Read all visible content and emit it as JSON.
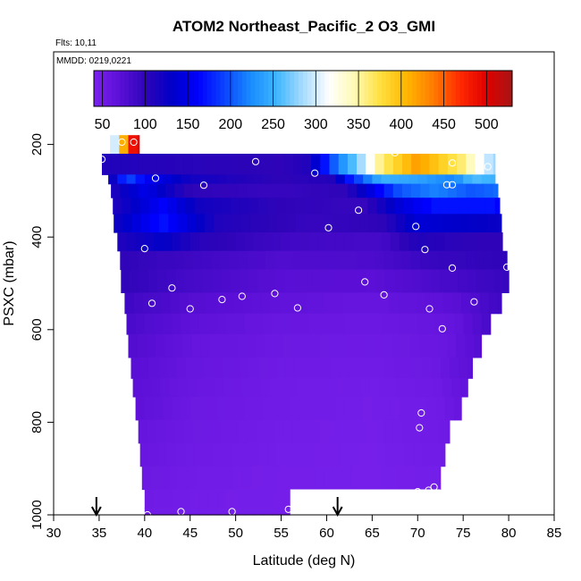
{
  "chart_data": {
    "type": "heatmap",
    "title": "ATOM2 Northeast_Pacific_2 O3_GMI",
    "notes": [
      "Flts: 10,11",
      "MMDD: 0219,0221"
    ],
    "xlabel": "Latitude (deg N)",
    "ylabel": "PSXC (mbar)",
    "xlim": [
      30,
      85
    ],
    "ylim": [
      1000,
      0
    ],
    "x_ticks": [
      30,
      35,
      40,
      45,
      50,
      55,
      60,
      65,
      70,
      75,
      80,
      85
    ],
    "y_ticks": [
      200,
      400,
      600,
      800,
      1000
    ],
    "colorbar": {
      "range": [
        40,
        530
      ],
      "ticks": [
        50,
        100,
        150,
        200,
        250,
        300,
        350,
        400,
        450,
        500
      ],
      "colors": [
        "#7b22ee",
        "#5b0fd6",
        "#2d04b8",
        "#0000c8",
        "#0000ff",
        "#0a44ff",
        "#1a8cff",
        "#3fb6ff",
        "#a8dcff",
        "#ffffff",
        "#fff9b0",
        "#ffdf3a",
        "#ffb400",
        "#ff7a00",
        "#ff2a00",
        "#e00000",
        "#a81414"
      ],
      "position": "top"
    },
    "grid": false,
    "bands": [
      {
        "p": [
          180,
          220
        ],
        "lat": [
          36.2,
          39.4
        ],
        "profile": [
          [
            36.2,
            250
          ],
          [
            37.0,
            330
          ],
          [
            37.6,
            400
          ],
          [
            38.3,
            480
          ],
          [
            39.4,
            500
          ]
        ]
      },
      {
        "p": [
          220,
          265
        ],
        "lat": [
          35.3,
          78.5
        ],
        "profile": [
          [
            35.3,
            110
          ],
          [
            45,
            105
          ],
          [
            55,
            100
          ],
          [
            58,
            110
          ],
          [
            61,
            210
          ],
          [
            64,
            290
          ],
          [
            66,
            360
          ],
          [
            70,
            420
          ],
          [
            75,
            360
          ],
          [
            77.5,
            300
          ],
          [
            78.5,
            280
          ]
        ]
      },
      {
        "p": [
          265,
          285
        ],
        "lat": [
          36.0,
          78.5
        ],
        "profile": [
          [
            36,
            100
          ],
          [
            38,
            200
          ],
          [
            40,
            160
          ],
          [
            45,
            120
          ],
          [
            55,
            100
          ],
          [
            61,
            110
          ],
          [
            62,
            160
          ],
          [
            66,
            250
          ],
          [
            70,
            240
          ],
          [
            74,
            220
          ],
          [
            76,
            260
          ],
          [
            78.5,
            250
          ]
        ]
      },
      {
        "p": [
          285,
          315
        ],
        "lat": [
          36.3,
          78.8
        ],
        "profile": [
          [
            36.3,
            110
          ],
          [
            40,
            150
          ],
          [
            45,
            100
          ],
          [
            55,
            95
          ],
          [
            62,
            100
          ],
          [
            64,
            130
          ],
          [
            68,
            200
          ],
          [
            72,
            220
          ],
          [
            76,
            200
          ],
          [
            78.8,
            210
          ]
        ]
      },
      {
        "p": [
          315,
          350
        ],
        "lat": [
          36.5,
          79.0
        ],
        "profile": [
          [
            36.5,
            110
          ],
          [
            42,
            160
          ],
          [
            46,
            120
          ],
          [
            55,
            100
          ],
          [
            64,
            95
          ],
          [
            68,
            140
          ],
          [
            72,
            170
          ],
          [
            78,
            170
          ],
          [
            79,
            160
          ]
        ]
      },
      {
        "p": [
          350,
          390
        ],
        "lat": [
          36.6,
          79.2
        ],
        "profile": [
          [
            36.6,
            120
          ],
          [
            42,
            170
          ],
          [
            48,
            110
          ],
          [
            58,
            95
          ],
          [
            66,
            100
          ],
          [
            70,
            140
          ],
          [
            76,
            130
          ],
          [
            79.2,
            125
          ]
        ]
      },
      {
        "p": [
          390,
          430
        ],
        "lat": [
          37.0,
          79.3
        ],
        "profile": [
          [
            37,
            110
          ],
          [
            42,
            130
          ],
          [
            46,
            105
          ],
          [
            56,
            88
          ],
          [
            66,
            85
          ],
          [
            70,
            110
          ],
          [
            76,
            100
          ],
          [
            79.3,
            100
          ]
        ]
      },
      {
        "p": [
          430,
          470
        ],
        "lat": [
          37.3,
          79.8
        ],
        "profile": [
          [
            37.3,
            100
          ],
          [
            45,
            90
          ],
          [
            55,
            78
          ],
          [
            65,
            80
          ],
          [
            72,
            95
          ],
          [
            79.8,
            100
          ]
        ]
      },
      {
        "p": [
          470,
          520
        ],
        "lat": [
          37.4,
          80.0
        ],
        "profile": [
          [
            37.4,
            100
          ],
          [
            45,
            85
          ],
          [
            55,
            72
          ],
          [
            65,
            70
          ],
          [
            74,
            85
          ],
          [
            80,
            95
          ]
        ]
      },
      {
        "p": [
          520,
          565
        ],
        "lat": [
          37.8,
          79.2
        ],
        "profile": [
          [
            37.8,
            90
          ],
          [
            45,
            75
          ],
          [
            55,
            65
          ],
          [
            65,
            60
          ],
          [
            74,
            70
          ],
          [
            79.2,
            90
          ]
        ]
      },
      {
        "p": [
          565,
          610
        ],
        "lat": [
          38.0,
          78.0
        ],
        "profile": [
          [
            38,
            82
          ],
          [
            45,
            68
          ],
          [
            55,
            58
          ],
          [
            65,
            55
          ],
          [
            74,
            62
          ],
          [
            78,
            85
          ]
        ]
      },
      {
        "p": [
          610,
          660
        ],
        "lat": [
          38.2,
          77.0
        ],
        "profile": [
          [
            38.2,
            78
          ],
          [
            45,
            62
          ],
          [
            55,
            55
          ],
          [
            65,
            52
          ],
          [
            73,
            58
          ],
          [
            77,
            75
          ]
        ]
      },
      {
        "p": [
          660,
          705
        ],
        "lat": [
          38.5,
          76.0
        ],
        "profile": [
          [
            38.5,
            72
          ],
          [
            45,
            60
          ],
          [
            55,
            52
          ],
          [
            65,
            50
          ],
          [
            72,
            55
          ],
          [
            76,
            70
          ]
        ]
      },
      {
        "p": [
          705,
          745
        ],
        "lat": [
          38.7,
          75.5
        ],
        "profile": [
          [
            38.7,
            70
          ],
          [
            45,
            58
          ],
          [
            55,
            50
          ],
          [
            65,
            48
          ],
          [
            72,
            52
          ],
          [
            75.5,
            65
          ]
        ]
      },
      {
        "p": [
          745,
          795
        ],
        "lat": [
          39.0,
          74.8
        ],
        "profile": [
          [
            39,
            68
          ],
          [
            45,
            55
          ],
          [
            55,
            50
          ],
          [
            65,
            47
          ],
          [
            72,
            50
          ],
          [
            74.8,
            60
          ]
        ]
      },
      {
        "p": [
          795,
          845
        ],
        "lat": [
          39.3,
          73.5
        ],
        "profile": [
          [
            39.3,
            62
          ],
          [
            45,
            54
          ],
          [
            55,
            48
          ],
          [
            65,
            46
          ],
          [
            73.5,
            52
          ]
        ]
      },
      {
        "p": [
          845,
          895
        ],
        "lat": [
          39.5,
          73.0
        ],
        "profile": [
          [
            39.5,
            58
          ],
          [
            45,
            52
          ],
          [
            55,
            47
          ],
          [
            65,
            45
          ],
          [
            73,
            50
          ]
        ]
      },
      {
        "p": [
          895,
          945
        ],
        "lat": [
          39.7,
          72.5
        ],
        "profile": [
          [
            39.7,
            55
          ],
          [
            45,
            50
          ],
          [
            55,
            46
          ],
          [
            65,
            45
          ],
          [
            72.5,
            47
          ]
        ]
      },
      {
        "p": [
          945,
          985
        ],
        "lat": [
          40.0,
          72.3
        ],
        "profile": [
          [
            40,
            52
          ],
          [
            45,
            48
          ],
          [
            55,
            46
          ],
          [
            56,
            46
          ],
          [
            65,
            45
          ],
          [
            72.3,
            46
          ]
        ]
      },
      {
        "p": [
          985,
          1000
        ],
        "lat": [
          40.0,
          56.0
        ],
        "profile": [
          [
            40,
            50
          ],
          [
            48,
            47
          ],
          [
            56,
            46
          ]
        ]
      }
    ],
    "gaps": [
      {
        "p": [
          945,
          1000
        ],
        "lat": [
          56.0,
          72.5
        ]
      }
    ],
    "flight_points": [
      [
        35.3,
        232
      ],
      [
        37.5,
        195
      ],
      [
        38.8,
        195
      ],
      [
        41.2,
        273
      ],
      [
        46.5,
        288
      ],
      [
        52.2,
        237
      ],
      [
        58.7,
        262
      ],
      [
        67.5,
        218
      ],
      [
        73.8,
        240
      ],
      [
        77.7,
        248
      ],
      [
        73.2,
        287
      ],
      [
        73.8,
        287
      ],
      [
        63.5,
        342
      ],
      [
        60.2,
        380
      ],
      [
        69.8,
        377
      ],
      [
        40.0,
        425
      ],
      [
        70.8,
        427
      ],
      [
        73.8,
        467
      ],
      [
        79.8,
        465
      ],
      [
        43.0,
        510
      ],
      [
        64.2,
        497
      ],
      [
        66.3,
        525
      ],
      [
        40.8,
        543
      ],
      [
        45.0,
        555
      ],
      [
        48.5,
        535
      ],
      [
        50.7,
        528
      ],
      [
        54.3,
        522
      ],
      [
        56.8,
        553
      ],
      [
        71.3,
        555
      ],
      [
        72.7,
        598
      ],
      [
        76.2,
        540
      ],
      [
        70.4,
        780
      ],
      [
        70.2,
        812
      ],
      [
        40.3,
        1000
      ],
      [
        44.0,
        993
      ],
      [
        49.6,
        993
      ],
      [
        55.8,
        988
      ],
      [
        70.0,
        950
      ],
      [
        71.2,
        947
      ],
      [
        71.8,
        940
      ]
    ],
    "flight_point_color": "#ffffff",
    "arrows_lat": [
      34.7,
      61.2
    ]
  }
}
